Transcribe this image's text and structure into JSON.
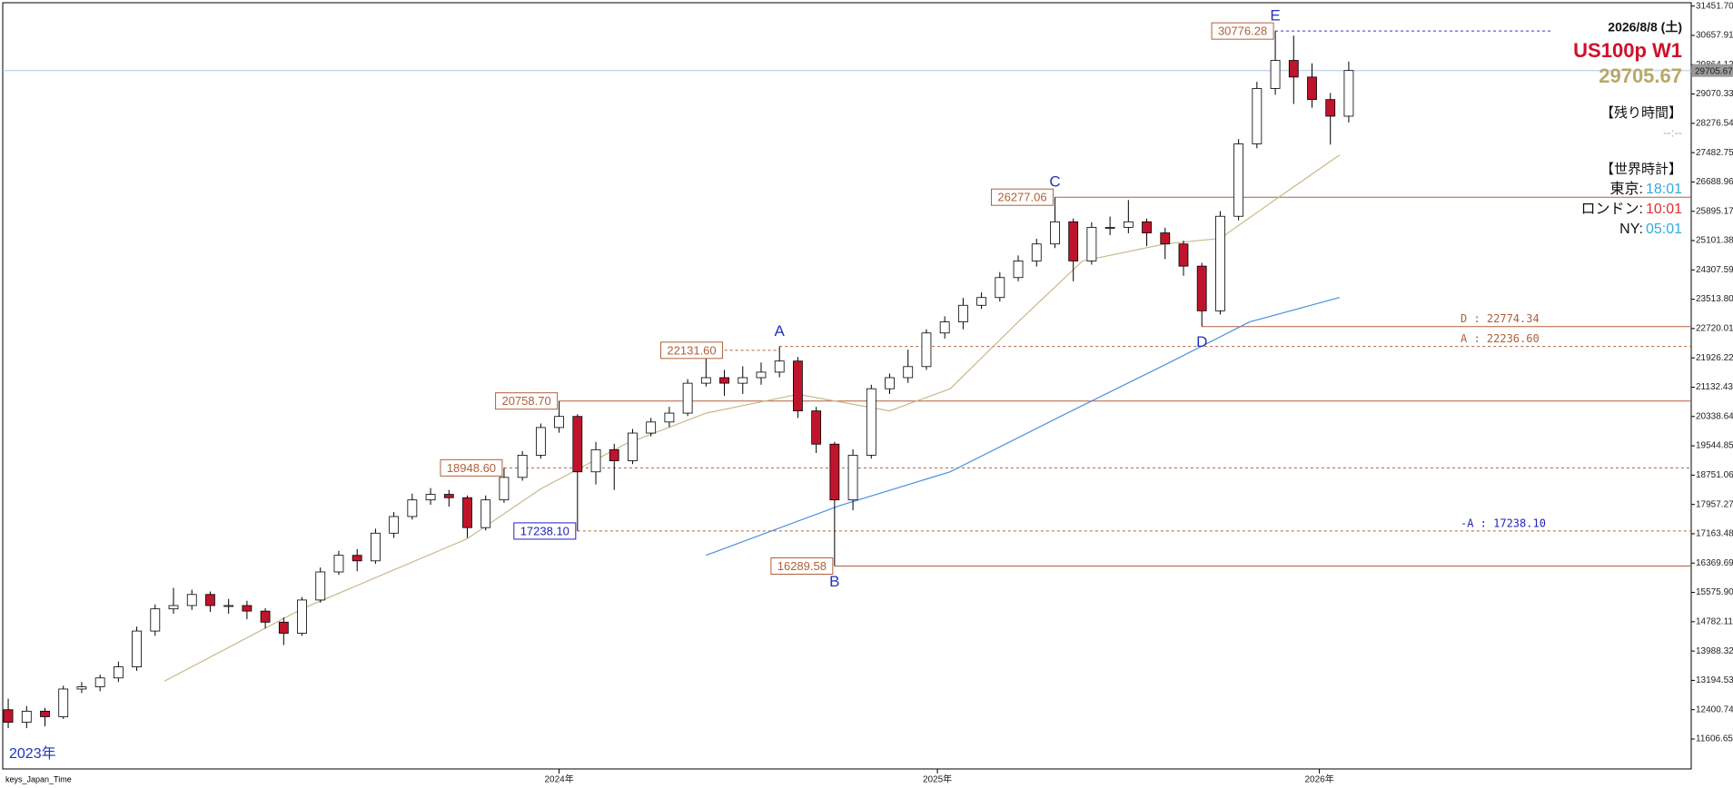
{
  "chart_data": {
    "type": "candlestick",
    "xlim": [
      -0.3,
      91.65
    ],
    "ylim": [
      10796,
      31542
    ],
    "up_color": "#ffffff",
    "down_color": "#c0142c",
    "open": [
      12400,
      12060,
      12360,
      12210,
      12960,
      13020,
      13260,
      13560,
      14530,
      15130,
      15220,
      15520,
      15220,
      15220,
      15070,
      14770,
      14470,
      15370,
      16130,
      16580,
      16430,
      17180,
      17630,
      18080,
      18230,
      18140,
      17330,
      18080,
      18690,
      19290,
      20040,
      20340,
      18840,
      19440,
      19140,
      19890,
      20190,
      20430,
      21240,
      21390,
      21240,
      21390,
      21540,
      21840,
      20490,
      19590,
      18080,
      19290,
      21090,
      21390,
      21690,
      22600,
      22900,
      23350,
      23560,
      24100,
      24550,
      25010,
      25610,
      24550,
      25460,
      25460,
      25610,
      25310,
      25010,
      24410,
      23200,
      25760,
      27720,
      29220,
      29980,
      29530,
      28920,
      28470
    ],
    "high": [
      12700,
      12500,
      12450,
      13050,
      13150,
      13350,
      13700,
      14650,
      15250,
      15700,
      15650,
      15600,
      15400,
      15350,
      15150,
      14900,
      15450,
      16250,
      16700,
      16750,
      17300,
      17750,
      18250,
      18400,
      18350,
      18200,
      18200,
      18948.6,
      19400,
      20150,
      20758.7,
      20400,
      19650,
      19600,
      20000,
      20300,
      20600,
      21350,
      21900,
      21600,
      21700,
      21800,
      22236.6,
      21950,
      20600,
      19650,
      19450,
      21200,
      21500,
      22150,
      22700,
      23050,
      23550,
      23700,
      24250,
      24700,
      25150,
      26277.06,
      25700,
      25600,
      25750,
      26200,
      25700,
      25450,
      25100,
      24500,
      25900,
      27850,
      29400,
      30776.28,
      30650,
      29900,
      29100,
      29950
    ],
    "low": [
      11900,
      11900,
      11950,
      12150,
      12850,
      12900,
      13150,
      13450,
      14400,
      15000,
      15100,
      15050,
      15000,
      14850,
      14600,
      14150,
      14400,
      15300,
      16050,
      16150,
      16350,
      17050,
      17550,
      17950,
      17900,
      17050,
      17250,
      18000,
      18600,
      19200,
      19900,
      17238.1,
      18500,
      18350,
      19050,
      19800,
      20050,
      20350,
      21150,
      20900,
      20950,
      21200,
      21400,
      20300,
      19350,
      16289.58,
      17800,
      19200,
      20950,
      21250,
      21600,
      22450,
      22700,
      23250,
      23450,
      24000,
      24400,
      24900,
      24000,
      24450,
      25250,
      25300,
      24950,
      24600,
      24150,
      22774.34,
      23100,
      25650,
      27600,
      29050,
      28800,
      28700,
      27700,
      28300
    ],
    "close": [
      12060,
      12360,
      12210,
      12960,
      13020,
      13260,
      13560,
      14530,
      15130,
      15220,
      15520,
      15220,
      15220,
      15070,
      14770,
      14470,
      15370,
      16130,
      16580,
      16430,
      17180,
      17630,
      18080,
      18230,
      18140,
      17330,
      18080,
      18690,
      19290,
      20040,
      20340,
      18840,
      19440,
      19140,
      19890,
      20190,
      20430,
      21240,
      21390,
      21240,
      21390,
      21540,
      21840,
      20490,
      19590,
      18080,
      19290,
      21090,
      21390,
      21690,
      22600,
      22900,
      23350,
      23560,
      24100,
      24550,
      25010,
      25610,
      24550,
      25460,
      25460,
      25610,
      25310,
      25010,
      24410,
      23200,
      25760,
      27720,
      29220,
      29980,
      29530,
      28920,
      28470,
      29705.67
    ],
    "lines": [
      {
        "color": "#c8b98a",
        "x": [
          8.5,
          16,
          25,
          29,
          33.6,
          38,
          43,
          48,
          51.3,
          55,
          58.5,
          63,
          66,
          69,
          72.5
        ],
        "values": [
          13170,
          15130,
          17030,
          18380,
          19590,
          20430,
          20940,
          20490,
          21090,
          22900,
          24550,
          25010,
          25160,
          26210,
          27420
        ]
      },
      {
        "color": "#4a90e2",
        "x": [
          38,
          45.3,
          51.3,
          57.3,
          63.4,
          67.6,
          72.5
        ],
        "values": [
          16580,
          17930,
          18840,
          20340,
          21840,
          22900,
          23560
        ]
      }
    ],
    "current": {
      "value": 29705.67,
      "color": "#a8c8e8",
      "tag_color": "#9a9a9a"
    },
    "levels": [
      {
        "value": 30776.28,
        "color": "#3333cc",
        "dashed": true,
        "from": 69,
        "to": 84.1,
        "box": true,
        "label_color": "#b0603a",
        "point": "E"
      },
      {
        "value": 26277.06,
        "color": "#b0603a",
        "dashed": false,
        "from": 57,
        "box": true,
        "label_color": "#b0603a",
        "point": "C"
      },
      {
        "value": 22774.34,
        "color": "#b0603a",
        "dashed": false,
        "from": 65,
        "box": false,
        "label_color": "#b0603a",
        "right_label": "D : 22774.34",
        "point": "D"
      },
      {
        "value": 22236.6,
        "color": "#b0603a",
        "dashed": true,
        "from": 42,
        "box": false,
        "label_color": "#b0603a",
        "right_label": "A : 22236.60",
        "point": "A"
      },
      {
        "value": 22131.6,
        "label": "22131.60",
        "color": "#b0603a",
        "dashed": true,
        "from": 39,
        "to": 42,
        "box": true,
        "label_color": "#b0603a"
      },
      {
        "value": 20758.7,
        "label": "20758.70",
        "color": "#b0603a",
        "dashed": false,
        "from": 30,
        "box": true,
        "label_color": "#b0603a"
      },
      {
        "value": 18948.6,
        "label": "18948.60",
        "color": "#b0603a",
        "dashed": true,
        "from": 27,
        "box": true,
        "label_color": "#b0603a"
      },
      {
        "value": 17238.1,
        "label": "17238.10",
        "color": "#b0603a",
        "dashed": true,
        "from": 31,
        "box": true,
        "label_color": "#2222bb",
        "right_label": "-A : 17238.10"
      },
      {
        "value": 16289.58,
        "color": "#b0603a",
        "dashed": false,
        "from": 45,
        "box": true,
        "label_color": "#b0603a",
        "point": "B"
      }
    ],
    "point_color": "#2233bb",
    "yticks": [
      {
        "value": 31451.7,
        "label": "31451.70"
      },
      {
        "value": 30657.91,
        "label": "30657.91"
      },
      {
        "value": 29864.12,
        "label": "29864.12"
      },
      {
        "value": 29070.33,
        "label": "29070.33"
      },
      {
        "value": 28276.54,
        "label": "28276.54"
      },
      {
        "value": 27482.75,
        "label": "27482.75"
      },
      {
        "value": 26688.96,
        "label": "26688.96"
      },
      {
        "value": 25895.17,
        "label": "25895.17"
      },
      {
        "value": 25101.38,
        "label": "25101.38"
      },
      {
        "value": 24307.59,
        "label": "24307.59"
      },
      {
        "value": 23513.8,
        "label": "23513.80"
      },
      {
        "value": 22720.01,
        "label": "22720.01"
      },
      {
        "value": 21926.22,
        "label": "21926.22"
      },
      {
        "value": 21132.43,
        "label": "21132.43"
      },
      {
        "value": 20338.64,
        "label": "20338.64"
      },
      {
        "value": 19544.85,
        "label": "19544.85"
      },
      {
        "value": 18751.06,
        "label": "18751.06"
      },
      {
        "value": 17957.27,
        "label": "17957.27"
      },
      {
        "value": 17163.48,
        "label": "17163.48"
      },
      {
        "value": 16369.69,
        "label": "16369.69"
      },
      {
        "value": 15575.9,
        "label": "15575.90"
      },
      {
        "value": 14782.11,
        "label": "14782.11"
      },
      {
        "value": 13988.32,
        "label": "13988.32"
      },
      {
        "value": 13194.53,
        "label": "13194.53"
      },
      {
        "value": 12400.74,
        "label": "12400.74"
      },
      {
        "value": 11606.65,
        "label": "11606.65"
      }
    ],
    "xticks": [
      {
        "value": 30,
        "label": "2024年"
      },
      {
        "value": 50.6,
        "label": "2025年"
      },
      {
        "value": 71.4,
        "label": "2026年"
      }
    ],
    "start_label": "2023年",
    "footer": "keys_Japan_Time",
    "panel": {
      "date": "2026/8/8 (土)",
      "symbol": "US100p W1",
      "remaining_title": "【残り時間】",
      "remaining": "--:--",
      "clock_title": "【世界時計】",
      "clocks": [
        {
          "city": "東京:",
          "time": "18:01",
          "color": "#33aadd"
        },
        {
          "city": "ロンドン:",
          "time": "10:01",
          "color": "#e03030"
        },
        {
          "city": "NY:",
          "time": "05:01",
          "color": "#33aadd"
        }
      ]
    }
  }
}
